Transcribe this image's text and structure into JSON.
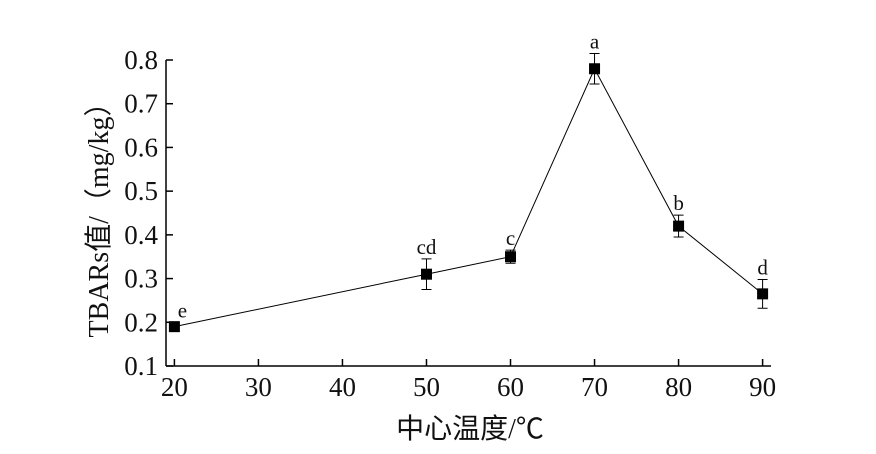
{
  "chart_data": {
    "type": "line",
    "x_label": "中心温度/℃",
    "y_label": "TBARs值/（mg/kg）",
    "x": [
      20,
      50,
      60,
      70,
      80,
      90
    ],
    "series": [
      {
        "color": "#000000",
        "values": [
          0.19,
          0.31,
          0.35,
          0.78,
          0.42,
          0.265
        ],
        "errors": [
          0.01,
          0.035,
          0.015,
          0.035,
          0.025,
          0.033
        ],
        "point_labels": [
          "e",
          "cd",
          "c",
          "a",
          "b",
          "d"
        ]
      }
    ],
    "xlim": [
      19,
      91
    ],
    "xticks": [
      20,
      30,
      40,
      50,
      60,
      70,
      80,
      90
    ],
    "ylim": [
      0.1,
      0.8
    ],
    "yticks": [
      0.1,
      0.2,
      0.3,
      0.4,
      0.5,
      0.6,
      0.7,
      0.8
    ],
    "grid": false
  }
}
